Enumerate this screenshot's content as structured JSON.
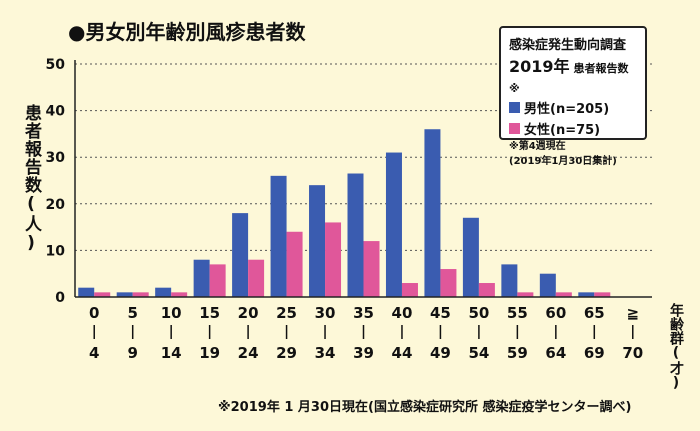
{
  "chart_data": {
    "type": "bar",
    "title": "●男女別年齢別風疹患者数",
    "ylabel": "患者報告数(人)",
    "xlabel": "年齢群(才)",
    "ylim": [
      0,
      50
    ],
    "yticks": [
      "0",
      "10",
      "20",
      "30",
      "40",
      "50"
    ],
    "grid": true,
    "categories": [
      {
        "top": "0",
        "bottom": "4"
      },
      {
        "top": "5",
        "bottom": "9"
      },
      {
        "top": "10",
        "bottom": "14"
      },
      {
        "top": "15",
        "bottom": "19"
      },
      {
        "top": "20",
        "bottom": "24"
      },
      {
        "top": "25",
        "bottom": "29"
      },
      {
        "top": "30",
        "bottom": "34"
      },
      {
        "top": "35",
        "bottom": "39"
      },
      {
        "top": "40",
        "bottom": "44"
      },
      {
        "top": "45",
        "bottom": "49"
      },
      {
        "top": "50",
        "bottom": "54"
      },
      {
        "top": "55",
        "bottom": "59"
      },
      {
        "top": "60",
        "bottom": "64"
      },
      {
        "top": "65",
        "bottom": "69"
      },
      {
        "top": "≧",
        "bottom": "70"
      }
    ],
    "series": [
      {
        "name": "男性(n=205)",
        "color": "#3a5cb0",
        "values": [
          2,
          1,
          2,
          8,
          18,
          26,
          24,
          26.5,
          31,
          36,
          17,
          7,
          5,
          1,
          0
        ]
      },
      {
        "name": "女性(n=75)",
        "color": "#e0579a",
        "values": [
          1,
          1,
          1,
          7,
          8,
          14,
          16,
          12,
          3,
          6,
          3,
          1,
          1,
          1,
          0
        ]
      }
    ],
    "legend_position": "top-right",
    "legend_box": {
      "heading": "感染症発生動向調査",
      "year": "2019年",
      "year_note": "患者報告数※",
      "note_line1": "※第4週現在",
      "note_line2": "(2019年1月30日集計)"
    },
    "footnote": "※2019年 1 月30日現在(国立感染症研究所 感染症疫学センター調べ)"
  }
}
